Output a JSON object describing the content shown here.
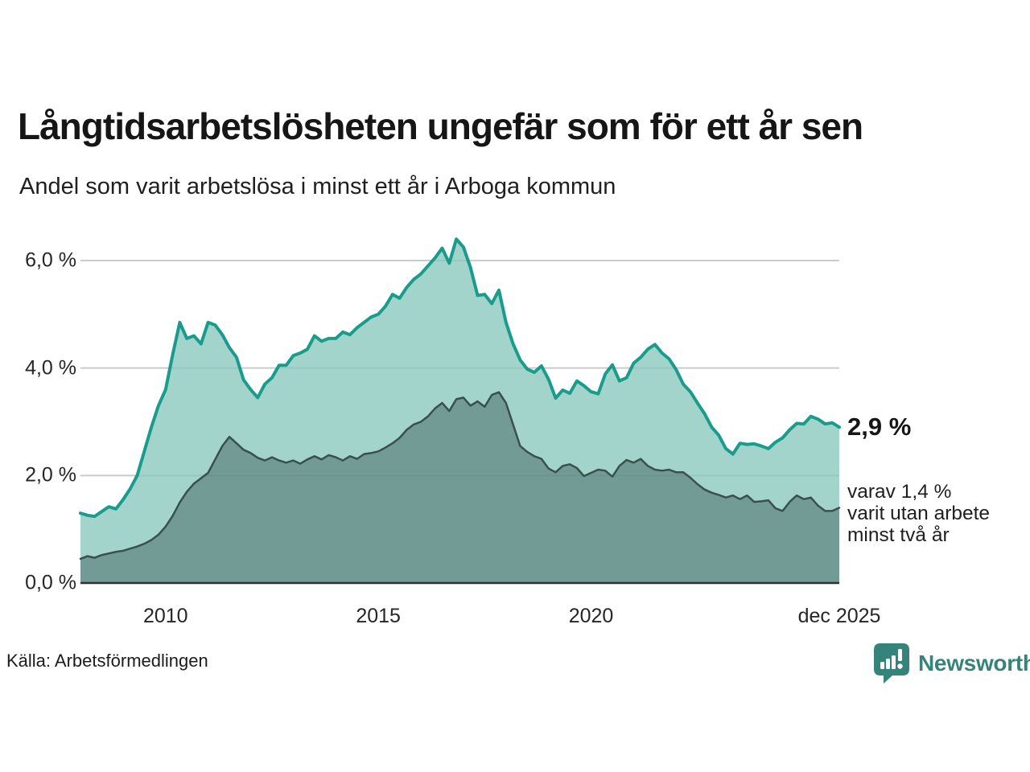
{
  "title": "Långtidsarbetslösheten ungefär som för ett år sen",
  "subtitle": "Andel som varit arbetslösa i minst ett år i Arboga kommun",
  "source": "Källa: Arbetsförmedlingen",
  "brand": {
    "name": "Newsworthy",
    "color": "#35847b"
  },
  "annotations": {
    "latest_value": "2,9 %",
    "breakdown_lines": [
      "varav 1,4 %",
      "varit utan arbete",
      "minst två år"
    ]
  },
  "chart_data": {
    "type": "area",
    "title": "Långtidsarbetslösheten ungefär som för ett år sen",
    "subtitle": "Andel som varit arbetslösa i minst ett år i Arboga kommun",
    "unit": "%",
    "x_start": "2008-01",
    "x_end": "2025-12",
    "points_per_year": 6,
    "ylim": [
      0,
      6
    ],
    "grid": true,
    "grid_color": "#d9d9d9",
    "baseline_color": "#303030",
    "y_ticks": [
      {
        "value": 6,
        "label": "6,0 %"
      },
      {
        "value": 4,
        "label": "4,0 %"
      },
      {
        "value": 2,
        "label": "2,0 %"
      },
      {
        "value": 0,
        "label": "0,0 %"
      }
    ],
    "x_ticks": [
      {
        "label": "2010",
        "pos_index": 12
      },
      {
        "label": "2015",
        "pos_index": 42
      },
      {
        "label": "2020",
        "pos_index": 72
      },
      {
        "label": "dec 2025",
        "pos_index": 107
      }
    ],
    "series": [
      {
        "name": "Andel som varit arbetslösa minst ett år",
        "latest_label": "2,9 %",
        "stroke": "#1a9c8c",
        "fill": "#a2d4cc",
        "line_width": 4,
        "values": [
          1.3,
          1.26,
          1.24,
          1.33,
          1.42,
          1.38,
          1.55,
          1.75,
          2.0,
          2.45,
          2.9,
          3.3,
          3.6,
          4.25,
          4.85,
          4.55,
          4.6,
          4.45,
          4.85,
          4.8,
          4.62,
          4.38,
          4.2,
          3.78,
          3.6,
          3.45,
          3.7,
          3.82,
          4.05,
          4.05,
          4.23,
          4.28,
          4.35,
          4.6,
          4.5,
          4.55,
          4.55,
          4.67,
          4.62,
          4.75,
          4.85,
          4.95,
          5.0,
          5.15,
          5.37,
          5.3,
          5.5,
          5.65,
          5.75,
          5.9,
          6.05,
          6.23,
          5.95,
          6.4,
          6.25,
          5.87,
          5.35,
          5.37,
          5.2,
          5.45,
          4.85,
          4.45,
          4.15,
          3.98,
          3.92,
          4.04,
          3.79,
          3.44,
          3.59,
          3.53,
          3.76,
          3.67,
          3.56,
          3.52,
          3.89,
          4.06,
          3.76,
          3.82,
          4.09,
          4.2,
          4.35,
          4.44,
          4.28,
          4.17,
          3.97,
          3.7,
          3.56,
          3.35,
          3.15,
          2.9,
          2.75,
          2.5,
          2.4,
          2.6,
          2.58,
          2.59,
          2.55,
          2.5,
          2.62,
          2.7,
          2.85,
          2.97,
          2.96,
          3.1,
          3.05,
          2.96,
          2.98,
          2.9
        ]
      },
      {
        "name": "varav arbetslösa minst två år",
        "latest_label": "1,4 %",
        "stroke": "#39514d",
        "fill": "#719b94",
        "line_width": 2.5,
        "values": [
          0.45,
          0.5,
          0.47,
          0.52,
          0.55,
          0.58,
          0.6,
          0.64,
          0.68,
          0.73,
          0.8,
          0.9,
          1.05,
          1.25,
          1.5,
          1.7,
          1.85,
          1.95,
          2.05,
          2.3,
          2.55,
          2.72,
          2.6,
          2.48,
          2.42,
          2.33,
          2.28,
          2.34,
          2.28,
          2.24,
          2.28,
          2.22,
          2.3,
          2.36,
          2.3,
          2.38,
          2.34,
          2.28,
          2.36,
          2.31,
          2.4,
          2.42,
          2.45,
          2.52,
          2.6,
          2.7,
          2.85,
          2.95,
          3.0,
          3.1,
          3.25,
          3.35,
          3.2,
          3.42,
          3.45,
          3.3,
          3.38,
          3.28,
          3.5,
          3.55,
          3.35,
          2.95,
          2.55,
          2.44,
          2.36,
          2.31,
          2.13,
          2.06,
          2.18,
          2.21,
          2.14,
          1.99,
          2.05,
          2.11,
          2.09,
          1.98,
          2.18,
          2.29,
          2.24,
          2.31,
          2.18,
          2.11,
          2.09,
          2.11,
          2.06,
          2.06,
          1.96,
          1.84,
          1.74,
          1.68,
          1.64,
          1.59,
          1.63,
          1.56,
          1.63,
          1.51,
          1.52,
          1.54,
          1.39,
          1.34,
          1.51,
          1.63,
          1.56,
          1.59,
          1.44,
          1.34,
          1.34,
          1.4
        ]
      }
    ]
  }
}
